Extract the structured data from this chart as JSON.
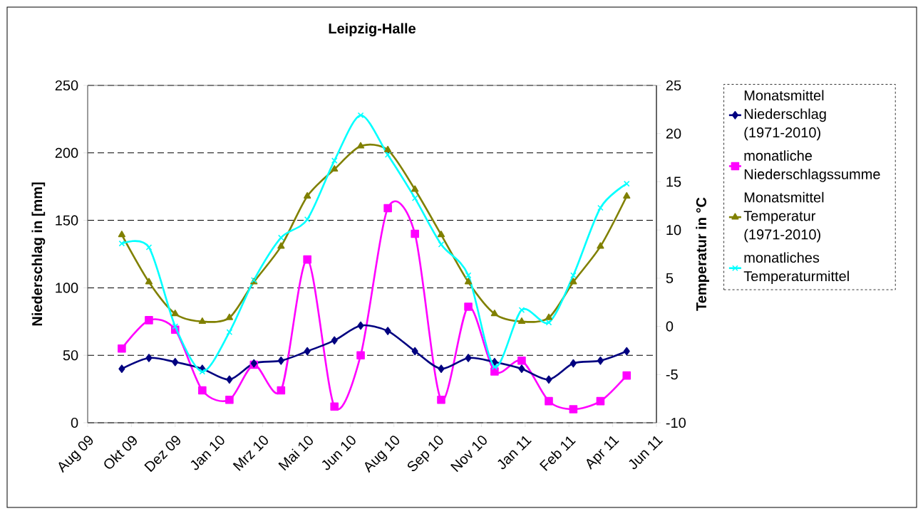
{
  "chart_data": {
    "type": "line",
    "title": "Leipzig-Halle",
    "ylabel": "Niederschlag in [mm]",
    "y2label": "Temperatur in °C",
    "x": [
      "2009-10-01",
      "2009-11-01",
      "2009-12-01",
      "2010-01-01",
      "2010-02-01",
      "2010-03-01",
      "2010-04-01",
      "2010-05-01",
      "2010-06-01",
      "2010-07-01",
      "2010-08-01",
      "2010-09-01",
      "2010-10-01",
      "2010-11-01",
      "2010-12-01",
      "2011-01-01",
      "2011-02-01",
      "2011-03-01",
      "2011-04-01",
      "2011-05-01"
    ],
    "xlim": [
      "2009-08-23",
      "2011-06-04"
    ],
    "xticks": [
      {
        "value": "2009-08-23",
        "label": "Aug 09"
      },
      {
        "value": "2009-10-12",
        "label": "Okt 09"
      },
      {
        "value": "2009-12-01",
        "label": "Dez 09"
      },
      {
        "value": "2010-01-20",
        "label": "Jan 10"
      },
      {
        "value": "2010-03-11",
        "label": "Mrz 10"
      },
      {
        "value": "2010-05-01",
        "label": "Mai 10"
      },
      {
        "value": "2010-06-19",
        "label": "Jun 10"
      },
      {
        "value": "2010-08-08",
        "label": "Aug 10"
      },
      {
        "value": "2010-09-27",
        "label": "Sep 10"
      },
      {
        "value": "2010-11-16",
        "label": "Nov 10"
      },
      {
        "value": "2011-01-05",
        "label": "Jan 11"
      },
      {
        "value": "2011-02-24",
        "label": "Feb 11"
      },
      {
        "value": "2011-04-15",
        "label": "Apr 11"
      },
      {
        "value": "2011-06-04",
        "label": "Jun 11"
      }
    ],
    "ylim": [
      0,
      250
    ],
    "yticks": [
      0,
      50,
      100,
      150,
      200,
      250
    ],
    "y2lim": [
      -10,
      25
    ],
    "y2ticks": [
      -10,
      -5,
      0,
      5,
      10,
      15,
      20,
      25
    ],
    "grid": "y",
    "legend": "right",
    "series": [
      {
        "name": "Monatsmittel Niederschlag (1971-2010)",
        "color": "#000080",
        "marker": "diamond",
        "values": [
          40,
          48,
          45,
          40,
          32,
          44,
          46,
          53,
          61,
          72,
          68,
          53,
          40,
          48,
          45,
          40,
          32,
          44,
          46,
          53
        ]
      },
      {
        "name": "monatliche Niederschlagssumme",
        "color": "#ff00ff",
        "marker": "square",
        "values": [
          55,
          76,
          69,
          24,
          17,
          43,
          24,
          121,
          12,
          50,
          159,
          140,
          17,
          86,
          38,
          46,
          16,
          10,
          16,
          35
        ]
      },
      {
        "name": "Monatsmittel Temperatur (1971-2010)",
        "color": "#808000",
        "marker": "triangle",
        "axis": "y2",
        "values": [
          9.5,
          4.6,
          1.3,
          0.5,
          0.9,
          4.6,
          8.3,
          13.5,
          16.3,
          18.7,
          18.3,
          14.2,
          9.5,
          4.6,
          1.3,
          0.5,
          0.9,
          4.6,
          8.3,
          13.5
        ]
      },
      {
        "name": "monatliches Temperaturmittel",
        "color": "#00ffff",
        "marker": "cross",
        "axis": "y2",
        "values": [
          8.6,
          8.2,
          0.0,
          -4.7,
          -0.6,
          4.8,
          9.2,
          11.1,
          17.2,
          21.9,
          17.8,
          13.3,
          8.5,
          5.3,
          -4.2,
          1.7,
          0.4,
          5.3,
          12.3,
          14.8
        ]
      }
    ]
  }
}
